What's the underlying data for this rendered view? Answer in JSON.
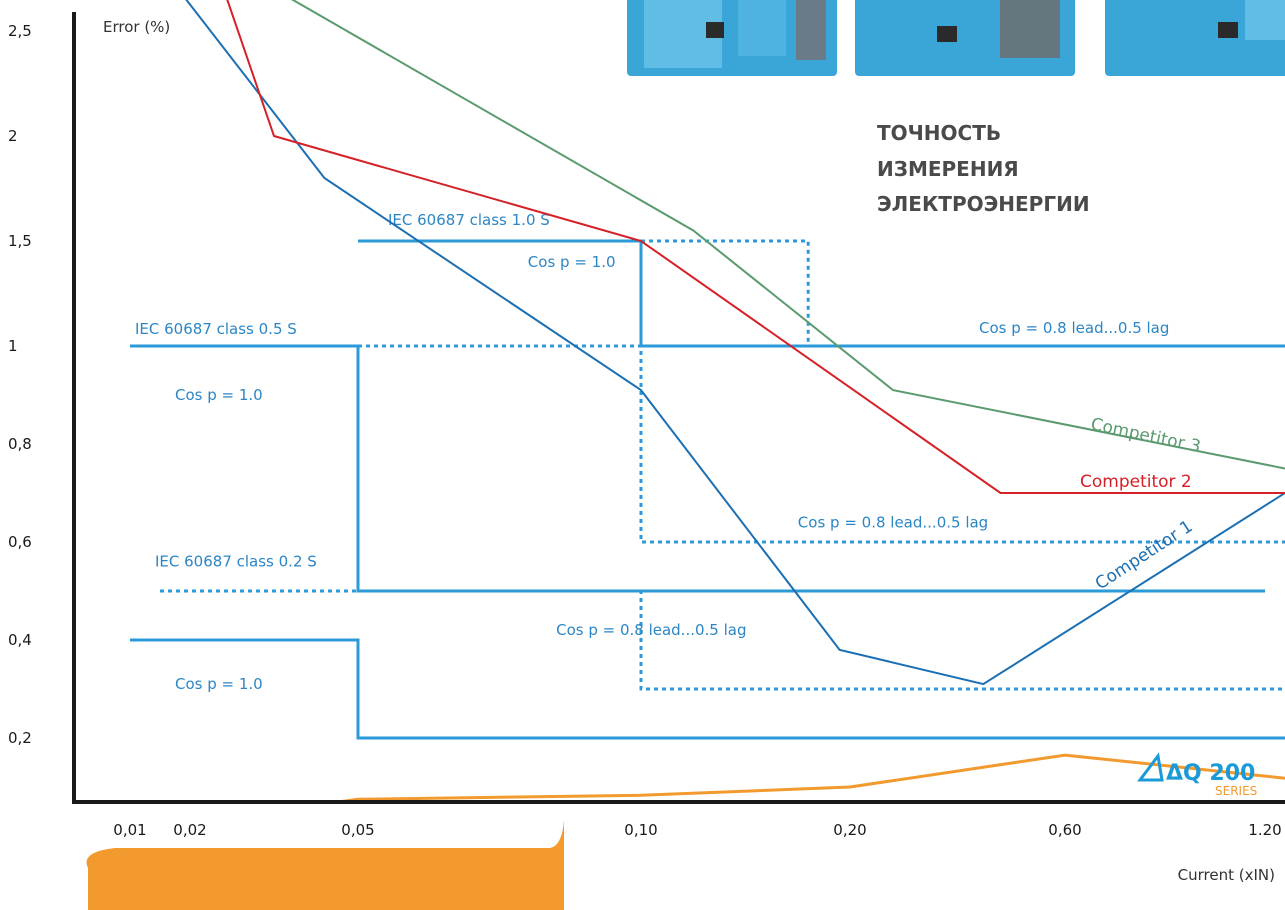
{
  "chart_data": {
    "type": "line",
    "ylabel": "Error (%)",
    "xlabel": "Current (xIN)",
    "heading": [
      "ТОЧНОСТЬ",
      "ИЗМЕРЕНИЯ",
      "ЭЛЕКТРОЭНЕРГИИ"
    ],
    "x_ticks": [
      "0,01",
      "0,02",
      "0,05",
      "0,10",
      "0,20",
      "0,60",
      "1.20"
    ],
    "y_ticks": [
      {
        "label": "2,5",
        "v": 2.5
      },
      {
        "label": "2",
        "v": 2.0
      },
      {
        "label": "1,5",
        "v": 1.5
      },
      {
        "label": "1",
        "v": 1.0
      },
      {
        "label": "0,8",
        "v": 0.8
      },
      {
        "label": "0,6",
        "v": 0.6
      },
      {
        "label": "0,4",
        "v": 0.4
      },
      {
        "label": "0,2",
        "v": 0.2
      }
    ],
    "note": "x values are category positions (0 = 0,01 … 6 = 1.20); y tick labels are non-uniform and the axis is drawn by tick position",
    "class_limits": [
      {
        "label": "IEC 60687 class 1.0 S",
        "solid": [
          [
            2,
            1.5
          ],
          [
            3,
            1.5
          ],
          [
            3,
            1.0
          ],
          [
            6.1,
            1.0
          ]
        ],
        "dotted": [
          [
            3,
            1.5
          ],
          [
            3.8,
            1.5
          ],
          [
            3.8,
            1.0
          ]
        ],
        "notes": [
          {
            "text": "Cos p = 1.0",
            "x": 2.6,
            "v": 1.4
          },
          {
            "text": "Cos p = 0.8 lead...0.5 lag",
            "x": 4.6,
            "v": 1.085
          }
        ]
      },
      {
        "label": "IEC 60687 class 0.5 S",
        "solid": [
          [
            0,
            1.0
          ],
          [
            2,
            1.0
          ],
          [
            2,
            0.5
          ],
          [
            6,
            0.5
          ]
        ],
        "dotted": [
          [
            2,
            1.0
          ],
          [
            3,
            1.0
          ],
          [
            3,
            0.6
          ],
          [
            6.1,
            0.6
          ]
        ],
        "notes": [
          {
            "text": "Cos p = 1.0",
            "x": 0.75,
            "v": 0.9
          },
          {
            "text": "Cos p = 0.8 lead...0.5 lag",
            "x": 3.75,
            "v": 0.64
          }
        ]
      },
      {
        "label": "IEC 60687 class 0.2 S",
        "solid": [
          [
            0,
            0.4
          ],
          [
            2,
            0.4
          ],
          [
            2,
            0.2
          ],
          [
            6.1,
            0.2
          ]
        ],
        "dotted": [
          [
            0.5,
            0.5
          ],
          [
            2,
            0.5
          ],
          [
            3,
            0.5
          ],
          [
            3,
            0.3
          ],
          [
            6.1,
            0.3
          ]
        ],
        "notes": [
          {
            "text": "Cos p = 1.0",
            "x": 0.75,
            "v": 0.31
          },
          {
            "text": "Cos p = 0.8 lead...0.5 lag",
            "x": 2.7,
            "v": 0.42
          }
        ]
      }
    ],
    "series": [
      {
        "name": "Competitor 1",
        "color": "#1b6fb3",
        "points": [
          [
            0.8,
            2.7
          ],
          [
            1.8,
            1.8
          ],
          [
            3.0,
            0.91
          ],
          [
            3.95,
            0.38
          ],
          [
            4.62,
            0.31
          ],
          [
            6.1,
            0.7
          ]
        ]
      },
      {
        "name": "Competitor 2",
        "color": "#d62027",
        "points": [
          [
            1.2,
            2.7
          ],
          [
            1.5,
            2.0
          ],
          [
            3.0,
            1.5
          ],
          [
            4.7,
            0.7
          ],
          [
            6.1,
            0.7
          ]
        ]
      },
      {
        "name": "Competitor 3",
        "color": "#5a9a6e",
        "points": [
          [
            1.5,
            2.7
          ],
          [
            3.25,
            1.55
          ],
          [
            4.2,
            0.91
          ],
          [
            6.1,
            0.75
          ]
        ]
      },
      {
        "name": "",
        "color": "#f29a2e",
        "points": [
          [
            0,
            0.02
          ],
          [
            0.5,
            0.02
          ],
          [
            2,
            0.075
          ],
          [
            3,
            0.083
          ],
          [
            4,
            0.1
          ],
          [
            5,
            0.165
          ],
          [
            6.1,
            0.118
          ]
        ]
      }
    ],
    "brand": {
      "logo": "ΔQ 200",
      "sub": "SERIES"
    }
  }
}
